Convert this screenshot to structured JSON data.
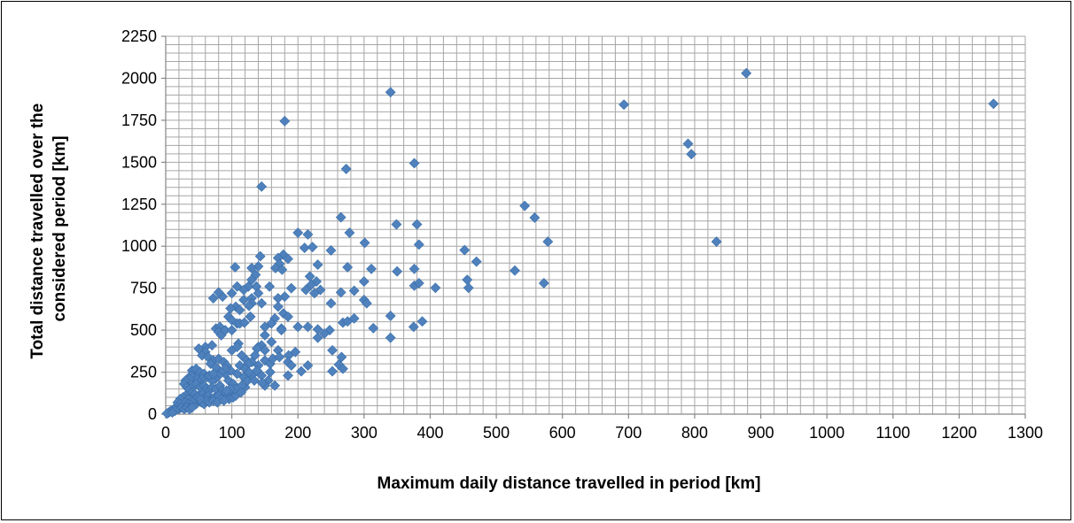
{
  "chart_data": {
    "type": "scatter",
    "title": "",
    "xlabel": "Maximum daily distance travelled in period [km]",
    "ylabel_lines": [
      "Total distance travelled over the",
      "considered period [km]"
    ],
    "xlim": [
      0,
      1300
    ],
    "ylim": [
      0,
      2250
    ],
    "x_ticks": [
      0,
      100,
      200,
      300,
      400,
      500,
      600,
      700,
      800,
      900,
      1000,
      1100,
      1200,
      1300
    ],
    "y_ticks": [
      0,
      250,
      500,
      750,
      1000,
      1250,
      1500,
      1750,
      2000,
      2250
    ],
    "x_minor_step": 20,
    "y_minor_step": 50,
    "grid": true,
    "marker": "diamond",
    "marker_color": "#4F81BD",
    "grid_color": "#A6A6A6",
    "series": [
      {
        "points": [
          [
            1252,
            1848
          ],
          [
            878,
            2030
          ],
          [
            693,
            1843
          ],
          [
            790,
            1610
          ],
          [
            795,
            1548
          ],
          [
            833,
            1027
          ],
          [
            340,
            1917
          ],
          [
            180,
            1745
          ],
          [
            145,
            1355
          ],
          [
            273,
            1460
          ],
          [
            376,
            1494
          ],
          [
            543,
            1240
          ],
          [
            558,
            1170
          ],
          [
            578,
            1027
          ],
          [
            452,
            977
          ],
          [
            470,
            908
          ],
          [
            528,
            855
          ],
          [
            572,
            780
          ],
          [
            456,
            800
          ],
          [
            458,
            752
          ],
          [
            408,
            752
          ],
          [
            380,
            1130
          ],
          [
            349,
            1130
          ],
          [
            383,
            1010
          ],
          [
            376,
            865
          ],
          [
            350,
            850
          ],
          [
            376,
            765
          ],
          [
            383,
            780
          ],
          [
            388,
            552
          ],
          [
            375,
            520
          ],
          [
            340,
            585
          ],
          [
            340,
            455
          ],
          [
            265,
            1172
          ],
          [
            278,
            1080
          ],
          [
            301,
            1020
          ],
          [
            250,
            975
          ],
          [
            275,
            875
          ],
          [
            311,
            865
          ],
          [
            300,
            790
          ],
          [
            285,
            735
          ],
          [
            265,
            725
          ],
          [
            300,
            680
          ],
          [
            304,
            660
          ],
          [
            285,
            570
          ],
          [
            268,
            545
          ],
          [
            275,
            552
          ],
          [
            314,
            512
          ],
          [
            250,
            660
          ],
          [
            248,
            500
          ],
          [
            240,
            480
          ],
          [
            230,
            505
          ],
          [
            230,
            455
          ],
          [
            252,
            380
          ],
          [
            252,
            255
          ],
          [
            262,
            295
          ],
          [
            266,
            340
          ],
          [
            268,
            270
          ],
          [
            200,
            1080
          ],
          [
            215,
            1070
          ],
          [
            222,
            995
          ],
          [
            210,
            990
          ],
          [
            230,
            890
          ],
          [
            178,
            950
          ],
          [
            185,
            925
          ],
          [
            170,
            930
          ],
          [
            172,
            895
          ],
          [
            166,
            870
          ],
          [
            176,
            860
          ],
          [
            157,
            760
          ],
          [
            218,
            820
          ],
          [
            228,
            790
          ],
          [
            220,
            770
          ],
          [
            234,
            740
          ],
          [
            225,
            720
          ],
          [
            212,
            740
          ],
          [
            190,
            750
          ],
          [
            180,
            700
          ],
          [
            170,
            690
          ],
          [
            170,
            640
          ],
          [
            178,
            600
          ],
          [
            185,
            580
          ],
          [
            165,
            570
          ],
          [
            160,
            540
          ],
          [
            175,
            510
          ],
          [
            200,
            520
          ],
          [
            215,
            520
          ],
          [
            186,
            350
          ],
          [
            196,
            370
          ],
          [
            185,
            310
          ],
          [
            190,
            290
          ],
          [
            215,
            290
          ],
          [
            205,
            255
          ],
          [
            185,
            230
          ],
          [
            175,
            500
          ],
          [
            143,
            940
          ],
          [
            140,
            880
          ],
          [
            130,
            870
          ],
          [
            136,
            830
          ],
          [
            130,
            800
          ],
          [
            137,
            760
          ],
          [
            140,
            720
          ],
          [
            105,
            875
          ],
          [
            108,
            760
          ],
          [
            100,
            720
          ],
          [
            86,
            700
          ],
          [
            80,
            725
          ],
          [
            72,
            690
          ],
          [
            125,
            760
          ],
          [
            118,
            740
          ],
          [
            130,
            690
          ],
          [
            118,
            680
          ],
          [
            130,
            660
          ],
          [
            126,
            645
          ],
          [
            145,
            660
          ],
          [
            106,
            640
          ],
          [
            98,
            630
          ],
          [
            112,
            620
          ],
          [
            95,
            580
          ],
          [
            100,
            560
          ],
          [
            128,
            580
          ],
          [
            60,
            400
          ],
          [
            70,
            410
          ],
          [
            76,
            510
          ],
          [
            82,
            520
          ],
          [
            80,
            490
          ],
          [
            84,
            470
          ],
          [
            90,
            500
          ],
          [
            100,
            500
          ],
          [
            108,
            540
          ],
          [
            112,
            540
          ],
          [
            119,
            545
          ],
          [
            128,
            580
          ],
          [
            150,
            520
          ],
          [
            150,
            470
          ],
          [
            160,
            430
          ],
          [
            145,
            410
          ],
          [
            140,
            400
          ],
          [
            138,
            390
          ],
          [
            150,
            380
          ],
          [
            135,
            350
          ],
          [
            120,
            330
          ],
          [
            130,
            310
          ],
          [
            140,
            290
          ],
          [
            150,
            320
          ],
          [
            158,
            300
          ],
          [
            162,
            330
          ],
          [
            170,
            380
          ],
          [
            172,
            340
          ],
          [
            158,
            250
          ],
          [
            145,
            230
          ],
          [
            155,
            200
          ],
          [
            150,
            170
          ],
          [
            165,
            170
          ],
          [
            146,
            185
          ],
          [
            110,
            420
          ],
          [
            100,
            380
          ],
          [
            108,
            400
          ],
          [
            115,
            350
          ],
          [
            125,
            300
          ],
          [
            112,
            290
          ],
          [
            120,
            270
          ],
          [
            118,
            220
          ],
          [
            108,
            240
          ],
          [
            98,
            260
          ],
          [
            90,
            240
          ],
          [
            95,
            200
          ],
          [
            102,
            180
          ],
          [
            120,
            160
          ],
          [
            115,
            170
          ],
          [
            50,
            390
          ],
          [
            60,
            370
          ],
          [
            55,
            350
          ],
          [
            64,
            340
          ],
          [
            72,
            320
          ],
          [
            68,
            300
          ],
          [
            76,
            280
          ],
          [
            80,
            330
          ],
          [
            88,
            310
          ],
          [
            92,
            290
          ],
          [
            90,
            270
          ],
          [
            84,
            250
          ],
          [
            80,
            230
          ],
          [
            75,
            210
          ],
          [
            70,
            200
          ],
          [
            40,
            260
          ],
          [
            46,
            270
          ],
          [
            52,
            250
          ],
          [
            58,
            240
          ],
          [
            62,
            220
          ],
          [
            66,
            230
          ],
          [
            72,
            240
          ],
          [
            54,
            210
          ],
          [
            48,
            200
          ],
          [
            44,
            220
          ],
          [
            38,
            230
          ],
          [
            36,
            210
          ],
          [
            30,
            200
          ],
          [
            28,
            180
          ],
          [
            32,
            160
          ],
          [
            36,
            150
          ],
          [
            42,
            170
          ],
          [
            46,
            180
          ],
          [
            52,
            160
          ],
          [
            58,
            170
          ],
          [
            62,
            150
          ],
          [
            66,
            140
          ],
          [
            70,
            160
          ],
          [
            76,
            150
          ],
          [
            82,
            170
          ],
          [
            86,
            140
          ],
          [
            90,
            130
          ],
          [
            96,
            120
          ],
          [
            40,
            130
          ],
          [
            44,
            120
          ],
          [
            50,
            110
          ],
          [
            56,
            120
          ],
          [
            60,
            100
          ],
          [
            64,
            110
          ],
          [
            70,
            90
          ],
          [
            74,
            100
          ],
          [
            80,
            110
          ],
          [
            84,
            90
          ],
          [
            30,
            110
          ],
          [
            26,
            100
          ],
          [
            22,
            90
          ],
          [
            34,
            90
          ],
          [
            18,
            70
          ],
          [
            22,
            60
          ],
          [
            26,
            50
          ],
          [
            30,
            70
          ],
          [
            34,
            60
          ],
          [
            38,
            50
          ],
          [
            42,
            70
          ],
          [
            46,
            60
          ],
          [
            50,
            80
          ],
          [
            54,
            70
          ],
          [
            58,
            60
          ],
          [
            62,
            80
          ],
          [
            16,
            40
          ],
          [
            12,
            30
          ],
          [
            8,
            20
          ],
          [
            6,
            14
          ],
          [
            4,
            8
          ],
          [
            2,
            4
          ],
          [
            20,
            30
          ],
          [
            24,
            40
          ],
          [
            28,
            30
          ],
          [
            32,
            40
          ],
          [
            36,
            30
          ],
          [
            40,
            40
          ],
          [
            14,
            20
          ],
          [
            10,
            10
          ],
          [
            44,
            90
          ],
          [
            48,
            100
          ],
          [
            52,
            90
          ],
          [
            66,
            70
          ],
          [
            72,
            80
          ],
          [
            78,
            70
          ],
          [
            96,
            90
          ],
          [
            102,
            100
          ],
          [
            88,
            80
          ],
          [
            106,
            110
          ],
          [
            114,
            130
          ],
          [
            104,
            150
          ],
          [
            98,
            150
          ],
          [
            92,
            140
          ],
          [
            124,
            200
          ],
          [
            130,
            230
          ],
          [
            134,
            200
          ],
          [
            126,
            250
          ],
          [
            138,
            260
          ]
        ]
      }
    ]
  }
}
